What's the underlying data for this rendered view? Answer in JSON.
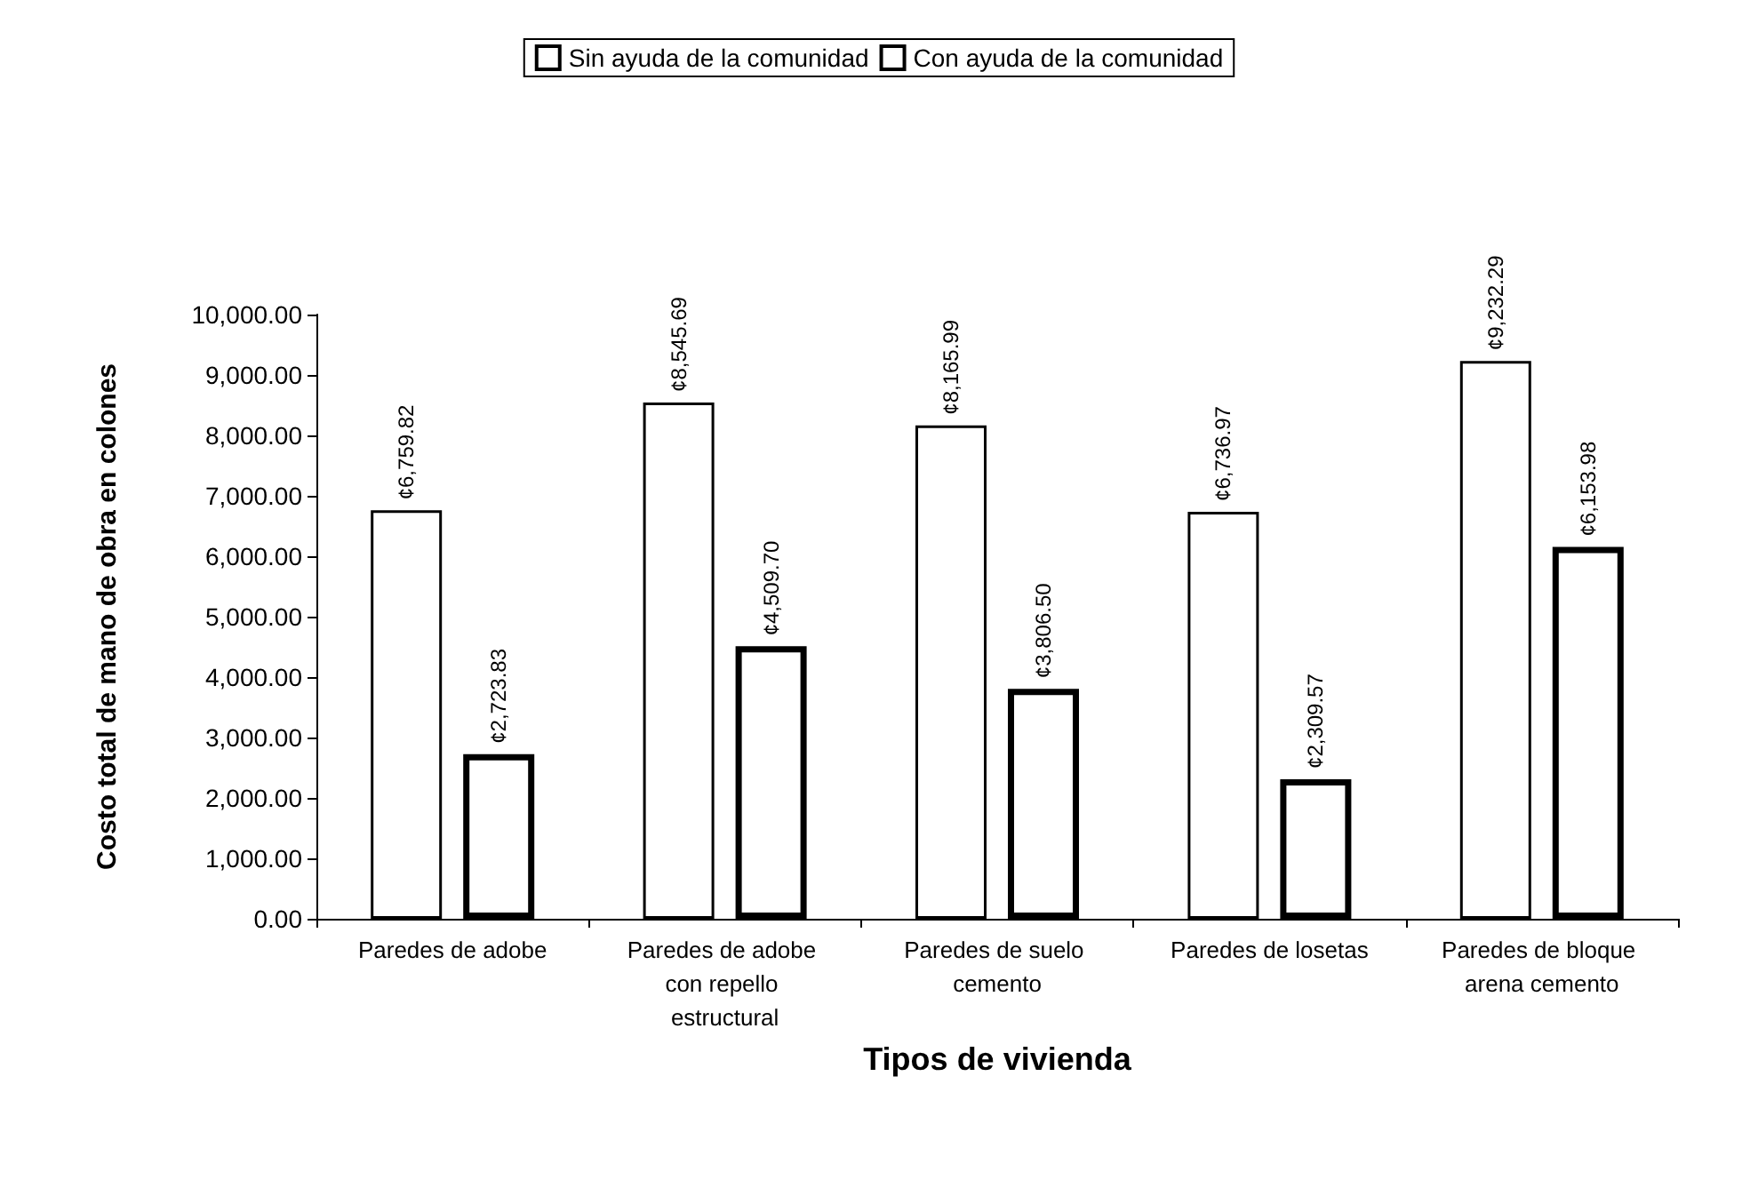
{
  "chart_data": {
    "type": "bar",
    "xlabel": "Tipos de vivienda",
    "ylabel": "Costo total de mano de obra en colones",
    "categories": [
      "Paredes de adobe",
      "Paredes de adobe con repello estructural",
      "Paredes de suelo cemento",
      "Paredes de losetas",
      "Paredes de bloque arena cemento"
    ],
    "series": [
      {
        "name": "Sin ayuda de la comunidad",
        "color": "#ffffff",
        "values": [
          6759.82,
          8545.69,
          8165.99,
          6736.97,
          9232.29
        ],
        "value_labels": [
          "¢6,759.82",
          "¢8,545.69",
          "¢8,165.99",
          "¢6,736.97",
          "¢9,232.29"
        ]
      },
      {
        "name": "Con ayuda de la comunidad",
        "color": "#ffffff",
        "values": [
          2723.83,
          4509.7,
          3806.5,
          2309.57,
          6153.98
        ],
        "value_labels": [
          "¢2,723.83",
          "¢4,509.70",
          "¢3,806.50",
          "¢2,309.57",
          "¢6,153.98"
        ]
      }
    ],
    "ylim": [
      0,
      10000
    ],
    "yticks": [
      {
        "value": 0,
        "label": "0.00"
      },
      {
        "value": 1000,
        "label": "1,000.00"
      },
      {
        "value": 2000,
        "label": "2,000.00"
      },
      {
        "value": 3000,
        "label": "3,000.00"
      },
      {
        "value": 4000,
        "label": "4,000.00"
      },
      {
        "value": 5000,
        "label": "5,000.00"
      },
      {
        "value": 6000,
        "label": "6,000.00"
      },
      {
        "value": 7000,
        "label": "7,000.00"
      },
      {
        "value": 8000,
        "label": "8,000.00"
      },
      {
        "value": 9000,
        "label": "9,000.00"
      },
      {
        "value": 10000,
        "label": "10,000.00"
      }
    ],
    "grid": false,
    "legend": "top"
  }
}
